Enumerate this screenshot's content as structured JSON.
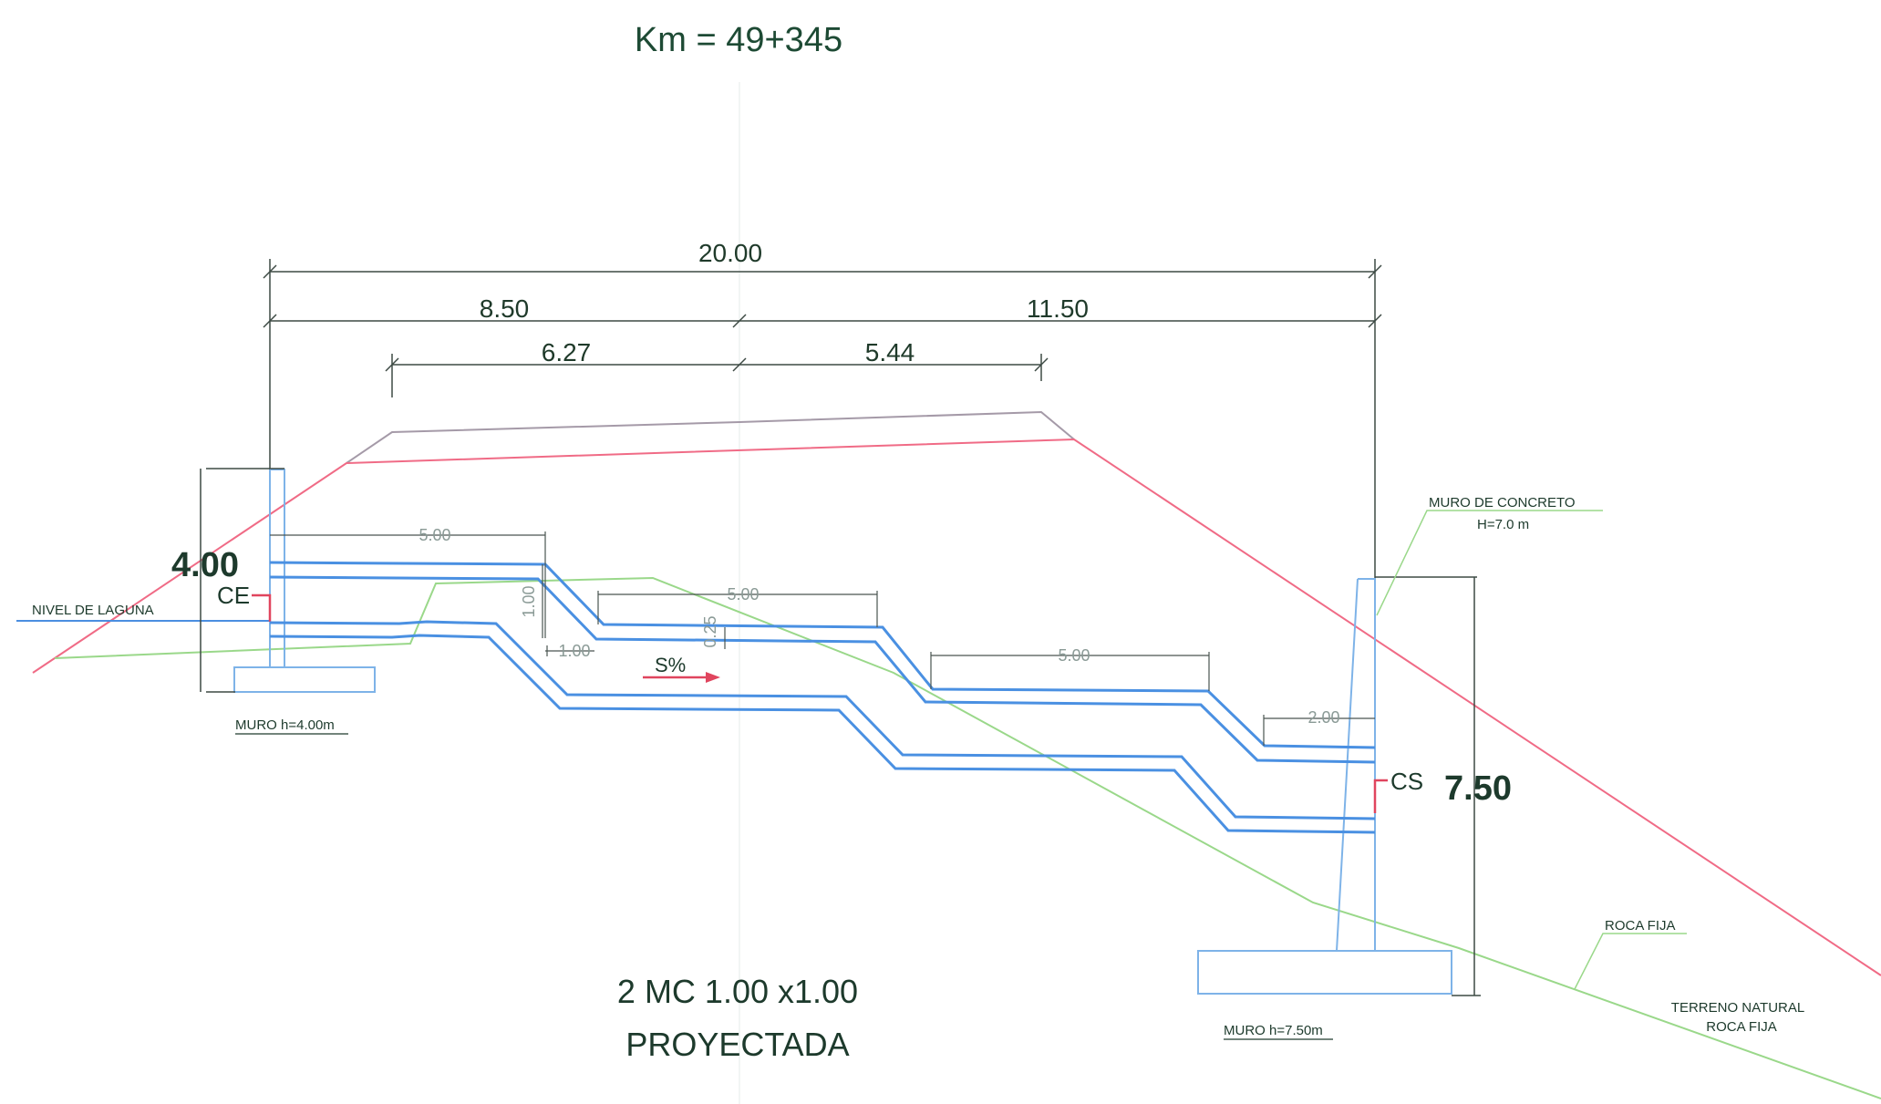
{
  "title": "Km = 49+345",
  "dimensions": {
    "total": "20.00",
    "left_span": "8.50",
    "right_span": "11.50",
    "crown_left": "6.27",
    "crown_right": "5.44",
    "step1_length": "5.00",
    "step2_length": "5.00",
    "step3_length": "5.00",
    "step_end_length": "2.00",
    "drop_height": "1.00",
    "wall_gap": "1.00",
    "step_offset": "0.25"
  },
  "inlet": {
    "height_label": "4.00",
    "code": "CE",
    "wall_label": "MURO h=4.00m"
  },
  "outlet": {
    "height_label": "7.50",
    "code": "CS",
    "wall_label": "MURO h=7.50m"
  },
  "labels": {
    "lagoon_level": "NIVEL DE LAGUNA",
    "concrete_wall_line1": "MURO DE CONCRETO",
    "concrete_wall_line2": "H=7.0 m",
    "bedrock": "ROCA FIJA",
    "natural_ground_line1": "TERRENO NATURAL",
    "natural_ground_line2": "ROCA FIJA",
    "slope": "S%"
  },
  "caption": {
    "line1": "2 MC 1.00 x1.00",
    "line2": "PROYECTADA"
  },
  "colors": {
    "culvert": "#4a90e2",
    "wall": "#7eb3e8",
    "terrain": "#9ad88a",
    "road": "#f06b86",
    "dimension": "#3d4a44"
  }
}
